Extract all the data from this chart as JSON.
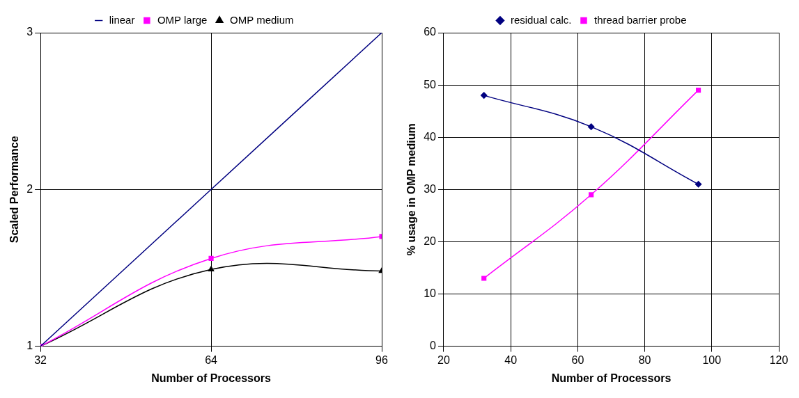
{
  "chart_data": [
    {
      "type": "line",
      "xlabel": "Number of Processors",
      "ylabel": "Scaled Performance",
      "x": [
        32,
        64,
        96
      ],
      "xlim": [
        32,
        96
      ],
      "xticks": [
        32,
        64,
        96
      ],
      "ylim": [
        1,
        3
      ],
      "yticks": [
        1,
        2,
        3
      ],
      "grid": true,
      "legend": "top",
      "series": [
        {
          "name": "linear",
          "color": "#000080",
          "marker": "none",
          "values": [
            1,
            2,
            3
          ]
        },
        {
          "name": "OMP large",
          "color": "#ff00ff",
          "marker": "square",
          "values": [
            1,
            1.56,
            1.7
          ]
        },
        {
          "name": "OMP medium",
          "color": "#000000",
          "marker": "triangle",
          "values": [
            1,
            1.49,
            1.48
          ]
        }
      ]
    },
    {
      "type": "line",
      "xlabel": "Number of Processors",
      "ylabel": "% usage in OMP medium",
      "x": [
        32,
        64,
        96
      ],
      "xlim": [
        20,
        120
      ],
      "xticks": [
        20,
        40,
        60,
        80,
        100,
        120
      ],
      "ylim": [
        0,
        60
      ],
      "yticks": [
        0,
        10,
        20,
        30,
        40,
        50,
        60
      ],
      "grid": true,
      "legend": "top",
      "series": [
        {
          "name": "residual calc.",
          "color": "#000080",
          "marker": "diamond",
          "values": [
            48,
            42,
            31
          ]
        },
        {
          "name": "thread barrier probe",
          "color": "#ff00ff",
          "marker": "square",
          "values": [
            13,
            29,
            49
          ]
        }
      ]
    }
  ]
}
